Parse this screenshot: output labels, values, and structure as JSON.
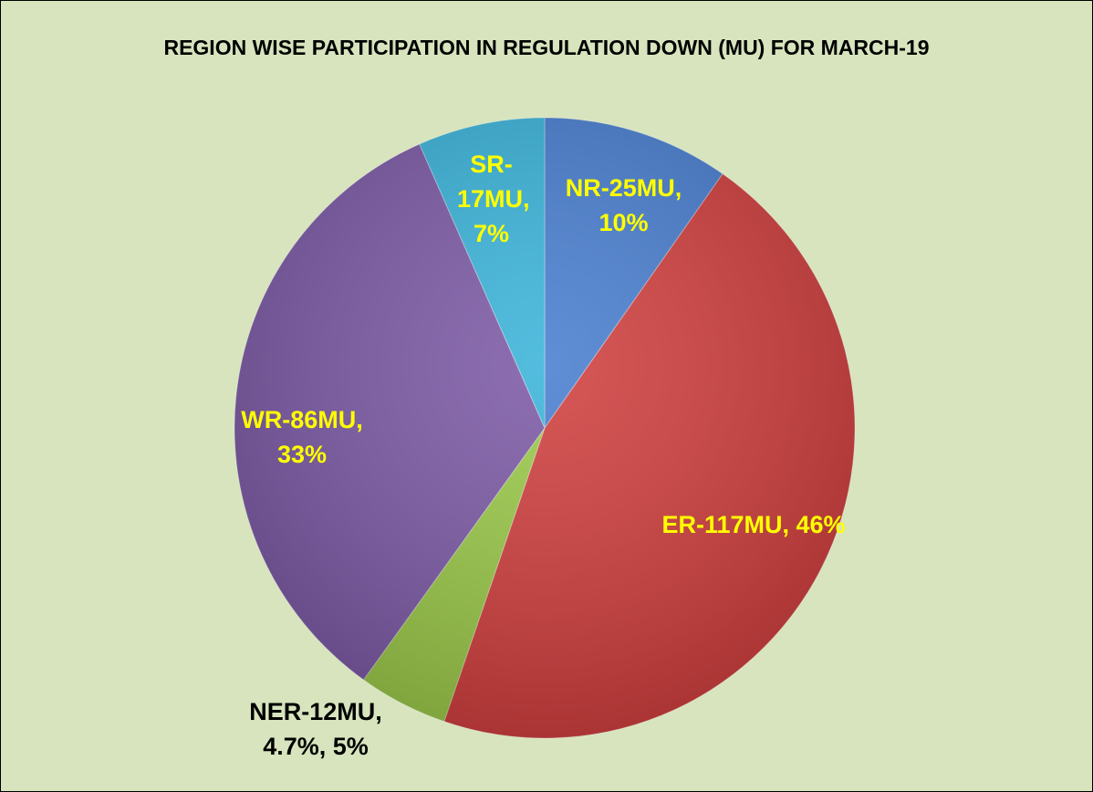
{
  "chart_data": {
    "type": "pie",
    "title": "REGION WISE PARTICIPATION IN REGULATION DOWN (MU) FOR MARCH-19",
    "categories": [
      "NR",
      "ER",
      "NER",
      "WR",
      "SR"
    ],
    "values": [
      25,
      117,
      12,
      86,
      17
    ],
    "value_labels": [
      "NR-25MU, 10%",
      "ER-117MU, 46%",
      "NER-12MU, 4.7%, 5%",
      "WR-86MU, 33%",
      "SR-17MU, 7%"
    ],
    "colors": [
      "#4a7fd0",
      "#d0403f",
      "#9bc94a",
      "#7d5ba6",
      "#3cb4da"
    ],
    "label_colors": [
      "#ffff00",
      "#ffff00",
      "#000000",
      "#ffff00",
      "#ffff00"
    ]
  }
}
